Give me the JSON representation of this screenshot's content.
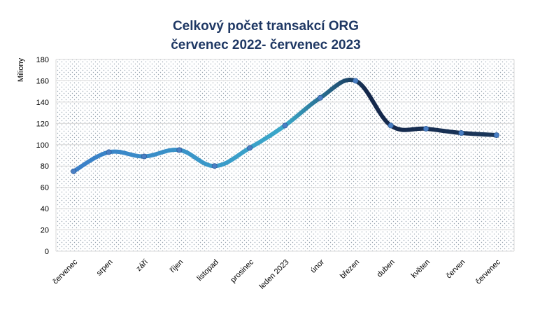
{
  "chart_data": {
    "type": "line",
    "title_line1": "Celkový počet transakcí ORG",
    "title_line2": "červenec 2022- červenec 2023",
    "ylabel": "Miliony",
    "xlabel": "",
    "categories": [
      "červenec",
      "srpen",
      "září",
      "říjen",
      "listopad",
      "prosinec",
      "leden 2023",
      "únor",
      "březen",
      "duben",
      "květen",
      "červen",
      "červenec"
    ],
    "series": [
      {
        "values": [
          75,
          93,
          89,
          95,
          80,
          97,
          118,
          144,
          160,
          118,
          115,
          111,
          109
        ]
      }
    ],
    "ylim": [
      0,
      180
    ],
    "yticks": [
      0,
      20,
      40,
      60,
      80,
      100,
      120,
      140,
      160,
      180
    ],
    "grid": true,
    "plot_background": "dotted",
    "colors": {
      "line_start": "#3a7bc8",
      "line_mid": "#3aa8c9",
      "line_end": "#1a3358",
      "title": "#1f3864",
      "axis_text": "#000000",
      "gridline": "#d9d9d9"
    }
  }
}
